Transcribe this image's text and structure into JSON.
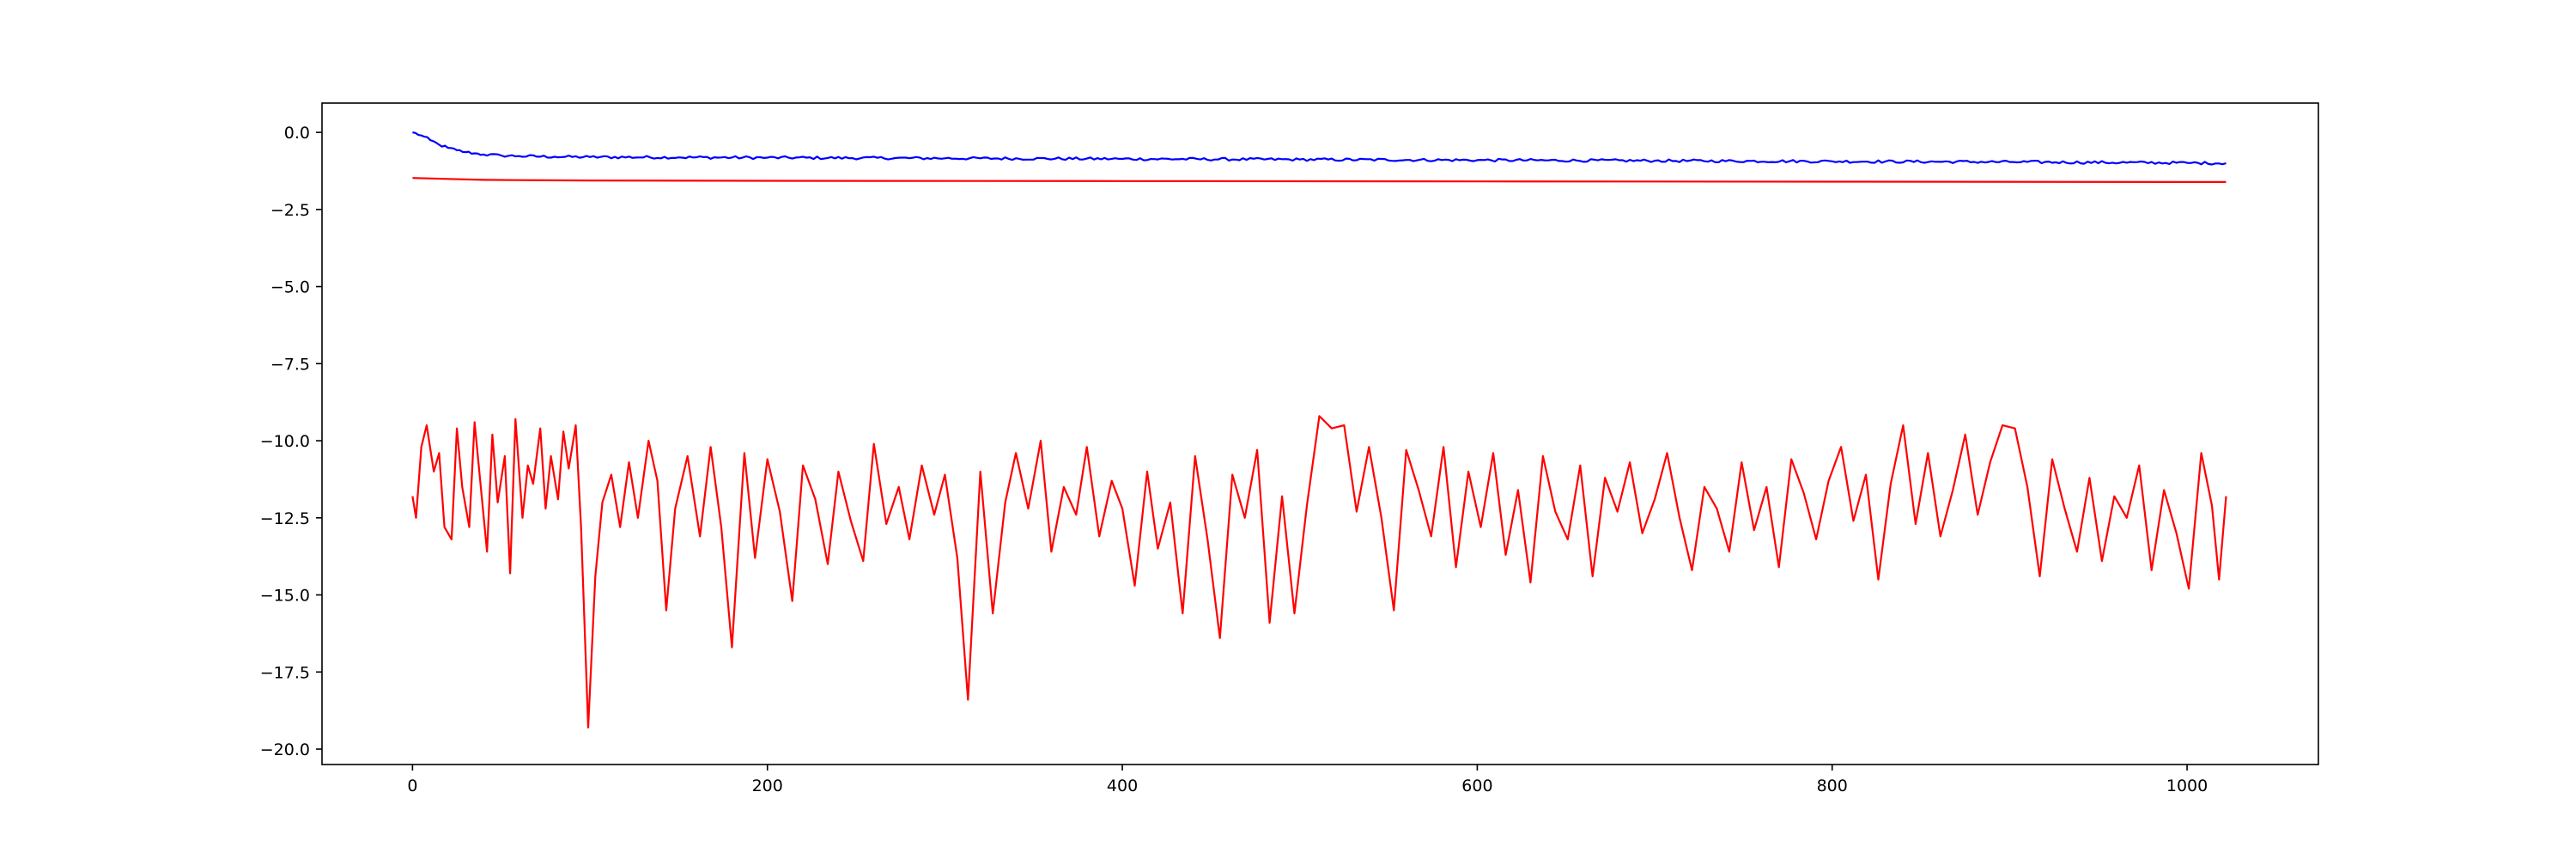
{
  "chart_data": {
    "type": "line",
    "title": "",
    "xlabel": "",
    "ylabel": "",
    "xlim": [
      -51,
      1074
    ],
    "ylim": [
      -20.5,
      0.95
    ],
    "x_ticks": [
      0,
      200,
      400,
      600,
      800,
      1000
    ],
    "x_tick_labels": [
      "0",
      "200",
      "400",
      "600",
      "800",
      "1000"
    ],
    "y_ticks": [
      0.0,
      -2.5,
      -5.0,
      -7.5,
      -10.0,
      -12.5,
      -15.0,
      -17.5,
      -20.0
    ],
    "y_tick_labels": [
      "0.0",
      "−2.5",
      "−5.0",
      "−7.5",
      "−10.0",
      "−12.5",
      "−15.0",
      "−17.5",
      "−20.0"
    ],
    "grid": false,
    "legend": "none",
    "series": [
      {
        "color": "#0000ff",
        "style": "noisy decaying trace",
        "x": [
          0,
          5,
          10,
          15,
          20,
          25,
          30,
          35,
          40,
          50,
          60,
          80,
          100,
          150,
          200,
          300,
          400,
          500,
          600,
          700,
          800,
          900,
          1000,
          1022
        ],
        "values": [
          0.0,
          -0.1,
          -0.25,
          -0.4,
          -0.5,
          -0.58,
          -0.64,
          -0.68,
          -0.72,
          -0.75,
          -0.77,
          -0.79,
          -0.8,
          -0.81,
          -0.82,
          -0.84,
          -0.86,
          -0.88,
          -0.9,
          -0.92,
          -0.94,
          -0.96,
          -0.99,
          -1.0
        ]
      },
      {
        "color": "#ff0000",
        "style": "smooth trace",
        "x": [
          0,
          20,
          40,
          60,
          100,
          200,
          400,
          600,
          800,
          1000,
          1022
        ],
        "values": [
          -1.48,
          -1.51,
          -1.54,
          -1.55,
          -1.56,
          -1.57,
          -1.58,
          -1.59,
          -1.6,
          -1.61,
          -1.61
        ]
      },
      {
        "color": "#ff0000",
        "style": "highly fluctuating trace",
        "x": [
          0,
          2,
          5,
          8,
          12,
          15,
          18,
          22,
          25,
          28,
          32,
          35,
          38,
          42,
          45,
          48,
          52,
          55,
          58,
          62,
          65,
          68,
          72,
          75,
          78,
          82,
          85,
          88,
          92,
          95,
          99,
          103,
          107,
          112,
          117,
          122,
          127,
          133,
          138,
          143,
          148,
          155,
          162,
          168,
          174,
          180,
          187,
          193,
          200,
          207,
          214,
          220,
          227,
          234,
          240,
          247,
          254,
          260,
          267,
          274,
          280,
          287,
          294,
          300,
          307,
          313,
          320,
          327,
          334,
          340,
          347,
          354,
          360,
          367,
          374,
          380,
          387,
          394,
          400,
          407,
          414,
          420,
          427,
          434,
          441,
          448,
          455,
          462,
          469,
          476,
          483,
          490,
          497,
          504,
          511,
          518,
          525,
          532,
          539,
          546,
          553,
          560,
          567,
          574,
          581,
          588,
          595,
          602,
          609,
          616,
          623,
          630,
          637,
          644,
          651,
          658,
          665,
          672,
          679,
          686,
          693,
          700,
          707,
          714,
          721,
          728,
          735,
          742,
          749,
          756,
          763,
          770,
          777,
          784,
          791,
          798,
          805,
          812,
          819,
          826,
          833,
          840,
          847,
          854,
          861,
          868,
          875,
          882,
          889,
          896,
          903,
          910,
          917,
          924,
          931,
          938,
          945,
          952,
          959,
          966,
          973,
          980,
          987,
          994,
          1001,
          1008,
          1014,
          1018,
          1022
        ],
        "values": [
          -11.8,
          -12.5,
          -10.2,
          -9.5,
          -11.0,
          -10.4,
          -12.8,
          -13.2,
          -9.6,
          -11.5,
          -12.8,
          -9.4,
          -11.2,
          -13.6,
          -9.8,
          -12.0,
          -10.5,
          -14.3,
          -9.3,
          -12.5,
          -10.8,
          -11.4,
          -9.6,
          -12.2,
          -10.5,
          -11.9,
          -9.7,
          -10.9,
          -9.5,
          -12.8,
          -19.3,
          -14.4,
          -12.0,
          -11.1,
          -12.8,
          -10.7,
          -12.5,
          -10.0,
          -11.3,
          -15.5,
          -12.2,
          -10.5,
          -13.1,
          -10.2,
          -12.8,
          -16.7,
          -10.4,
          -13.8,
          -10.6,
          -12.3,
          -15.2,
          -10.8,
          -11.9,
          -14.0,
          -11.0,
          -12.6,
          -13.9,
          -10.1,
          -12.7,
          -11.5,
          -13.2,
          -10.8,
          -12.4,
          -11.1,
          -13.8,
          -18.4,
          -11.0,
          -15.6,
          -12.0,
          -10.4,
          -12.2,
          -10.0,
          -13.6,
          -11.5,
          -12.4,
          -10.2,
          -13.1,
          -11.3,
          -12.2,
          -14.7,
          -11.0,
          -13.5,
          -12.0,
          -15.6,
          -10.5,
          -13.2,
          -16.4,
          -11.1,
          -12.5,
          -10.3,
          -15.9,
          -11.8,
          -15.6,
          -12.1,
          -9.2,
          -9.6,
          -9.5,
          -12.3,
          -10.2,
          -12.5,
          -15.5,
          -10.3,
          -11.6,
          -13.1,
          -10.2,
          -14.1,
          -11.0,
          -12.8,
          -10.4,
          -13.7,
          -11.6,
          -14.6,
          -10.5,
          -12.3,
          -13.2,
          -10.8,
          -14.4,
          -11.2,
          -12.3,
          -10.7,
          -13.0,
          -11.9,
          -10.4,
          -12.5,
          -14.2,
          -11.5,
          -12.2,
          -13.6,
          -10.7,
          -12.9,
          -11.5,
          -14.1,
          -10.6,
          -11.7,
          -13.2,
          -11.3,
          -10.2,
          -12.6,
          -11.1,
          -14.5,
          -11.4,
          -9.5,
          -12.7,
          -10.4,
          -13.1,
          -11.6,
          -9.8,
          -12.4,
          -10.7,
          -9.5,
          -9.6,
          -11.5,
          -14.4,
          -10.6,
          -12.2,
          -13.6,
          -11.2,
          -13.9,
          -11.8,
          -12.5,
          -10.8,
          -14.2,
          -11.6,
          -13.0,
          -14.8,
          -10.4,
          -12.1,
          -14.5,
          -11.8
        ]
      }
    ]
  }
}
